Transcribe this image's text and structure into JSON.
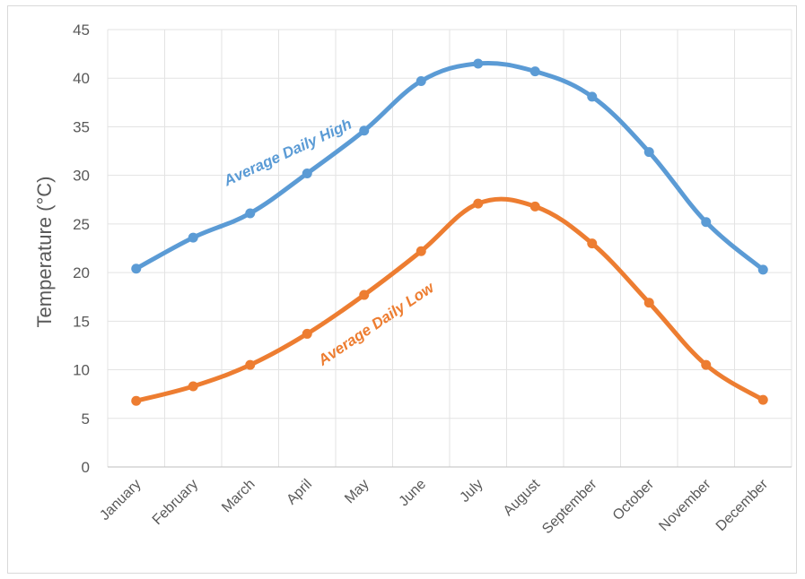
{
  "chart_data": {
    "type": "line",
    "title": "",
    "xlabel": "",
    "ylabel": "Temperature (°C)",
    "ylim": [
      0,
      45
    ],
    "yticks": [
      "0",
      "5",
      "10",
      "15",
      "20",
      "25",
      "30",
      "35",
      "40",
      "45"
    ],
    "grid": true,
    "legend": "inline labels",
    "categories": [
      "January",
      "February",
      "March",
      "April",
      "May",
      "June",
      "July",
      "August",
      "September",
      "October",
      "November",
      "December"
    ],
    "series": [
      {
        "name": "Average Daily High",
        "color": "#5b9bd5",
        "values": [
          20.4,
          23.6,
          26.1,
          30.2,
          34.6,
          39.7,
          41.5,
          40.7,
          38.1,
          32.4,
          25.2,
          20.3
        ]
      },
      {
        "name": "Average Daily Low",
        "color": "#ed7d31",
        "values": [
          6.8,
          8.3,
          10.5,
          13.7,
          17.7,
          22.2,
          27.1,
          26.8,
          23.0,
          16.9,
          10.5,
          6.9
        ]
      }
    ]
  }
}
